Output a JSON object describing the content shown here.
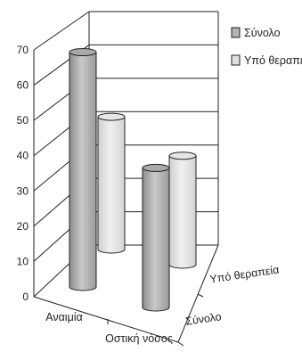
{
  "chart_data": {
    "type": "bar",
    "title": "",
    "xlabel": "",
    "ylabel": "",
    "ylim": [
      0,
      70
    ],
    "yticks": [
      "0",
      "10",
      "20",
      "30",
      "40",
      "50",
      "60",
      "70"
    ],
    "categories": [
      "Αναιμία",
      "Οστική νόσος"
    ],
    "depth_labels": [
      "Σύνολο",
      "Υπό θεραπεία"
    ],
    "series": [
      {
        "name": "Σύνολο",
        "values": [
          69,
          41
        ],
        "color": "#b4b4b4"
      },
      {
        "name": "Υπό θεραπεία",
        "values": [
          39,
          32
        ],
        "color": "#e0e0e0"
      }
    ],
    "legend": {
      "position": "top-right"
    },
    "grid": true
  }
}
